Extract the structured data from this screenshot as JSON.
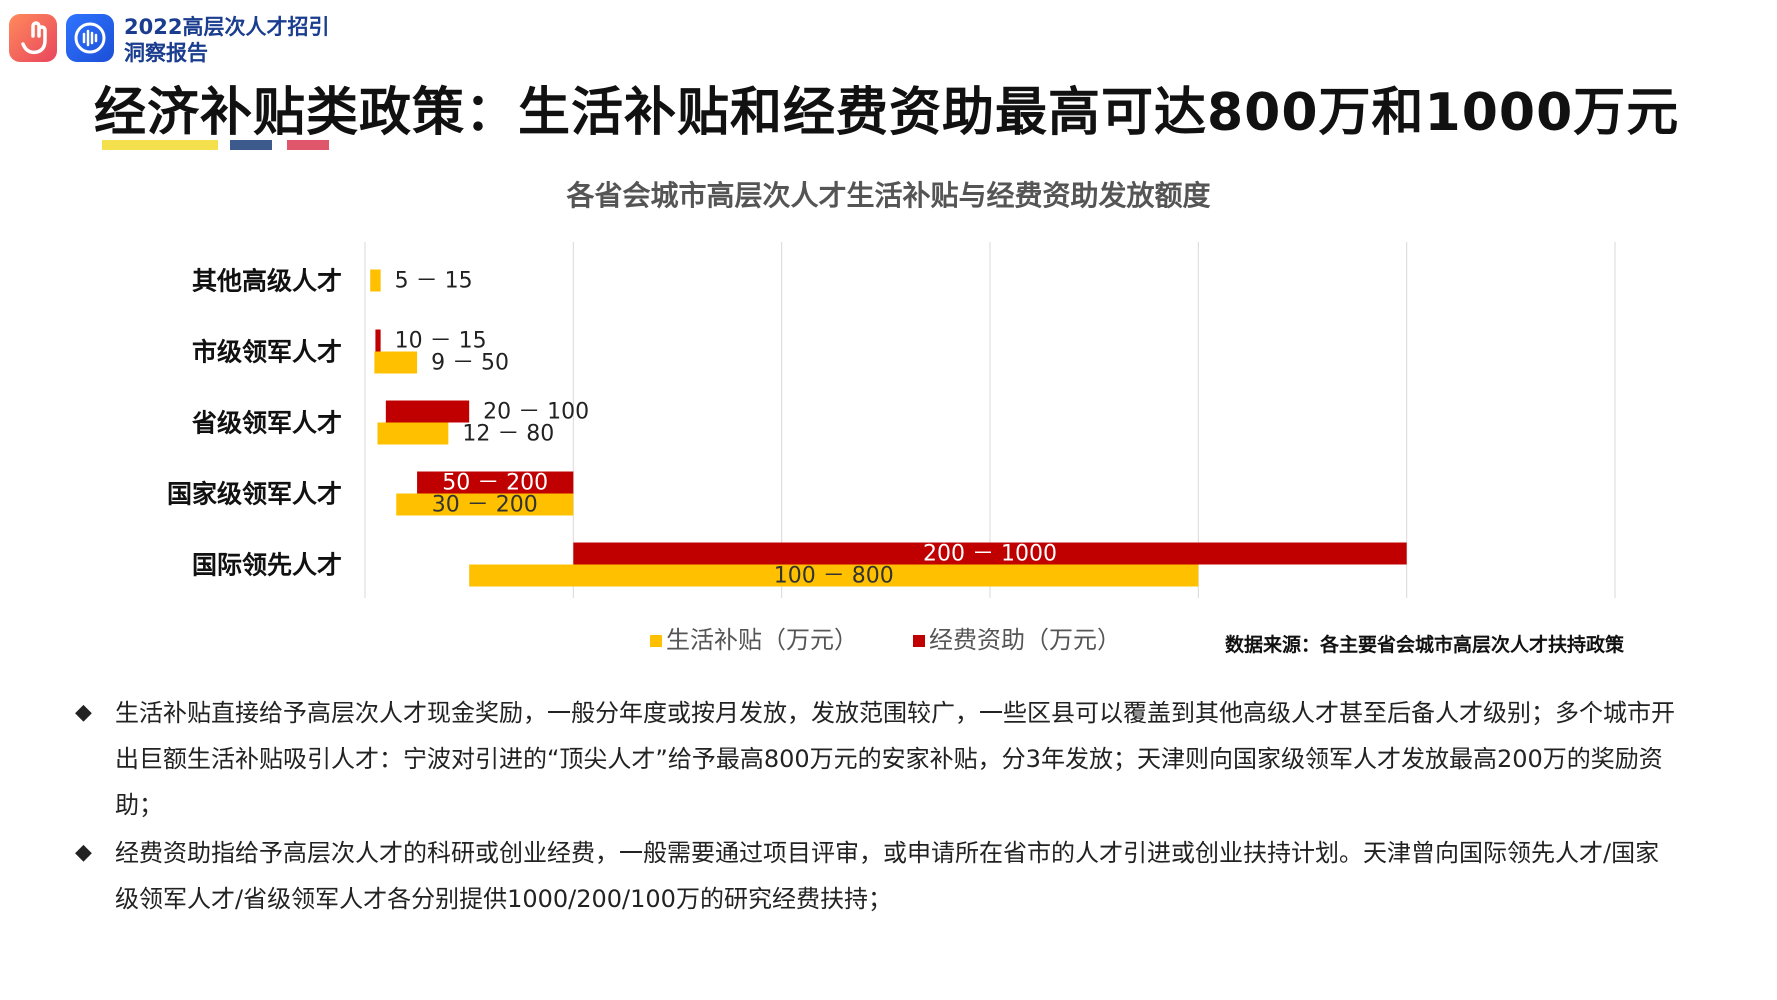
{
  "header": {
    "brand_line1": "2022高层次人才招引",
    "brand_line2": "洞察报告",
    "logo_left_icon": "hand-wave-icon",
    "logo_right_icon": "sound-wave-icon"
  },
  "page_title": "经济补贴类政策：生活补贴和经费资助最高可达800万和1000万元",
  "colors": {
    "living": "#FFC000",
    "funding": "#C00000",
    "accent_yellow": "#F4E04D",
    "accent_blue": "#3D5A8C",
    "accent_red": "#E0566A"
  },
  "chart_data": {
    "type": "bar",
    "orientation": "horizontal-floating",
    "title": "各省会城市高层次人才生活补贴与经费资助发放额度",
    "categories": [
      "其他高级人才",
      "市级领军人才",
      "省级领军人才",
      "国家级领军人才",
      "国际领先人才"
    ],
    "series": [
      {
        "name": "生活补贴（万元）",
        "color": "#FFC000",
        "ranges": [
          [
            5,
            15
          ],
          [
            9,
            50
          ],
          [
            12,
            80
          ],
          [
            30,
            200
          ],
          [
            100,
            800
          ]
        ],
        "labels": [
          "5 － 15",
          "9 － 50",
          "12 － 80",
          "30 － 200",
          "100 － 800"
        ]
      },
      {
        "name": "经费资助（万元）",
        "color": "#C00000",
        "ranges": [
          null,
          [
            10,
            15
          ],
          [
            20,
            100
          ],
          [
            50,
            200
          ],
          [
            200,
            1000
          ]
        ],
        "labels": [
          "",
          "10 － 15",
          "20 － 100",
          "50 － 200",
          "200 － 1000"
        ]
      }
    ],
    "xlim": [
      0,
      1200
    ],
    "grid": true,
    "legend": "bottom"
  },
  "source_note": "数据来源：各主要省会城市高层次人才扶持政策",
  "bullets": [
    "生活补贴直接给予高层次人才现金奖励，一般分年度或按月发放，发放范围较广，一些区县可以覆盖到其他高级人才甚至后备人才级别；多个城市开出巨额生活补贴吸引人才：宁波对引进的“顶尖人才”给予最高800万元的安家补贴，分3年发放；天津则向国家级领军人才发放最高200万的奖励资助；",
    "经费资助指给予高层次人才的科研或创业经费，一般需要通过项目评审，或申请所在省市的人才引进或创业扶持计划。天津曾向国际领先人才/国家级领军人才/省级领军人才各分别提供1000/200/100万的研究经费扶持；"
  ],
  "bullet_symbol": "◆"
}
